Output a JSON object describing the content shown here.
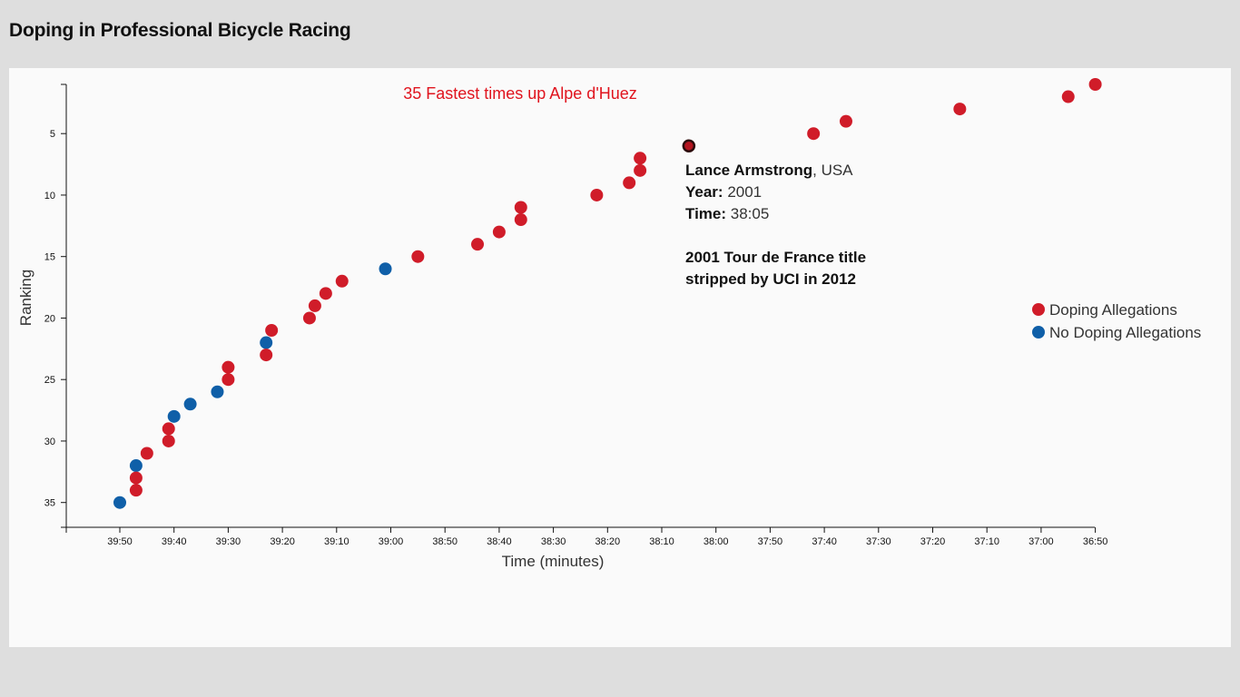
{
  "page": {
    "title": "Doping in Professional Bicycle Racing"
  },
  "colors": {
    "doping": "#d01c29",
    "clean": "#0f5fa8",
    "title": "#e0141e"
  },
  "chart_data": {
    "type": "scatter",
    "title": "35 Fastest times up Alpe d'Huez",
    "xlabel": "Time (minutes)",
    "ylabel": "Ranking",
    "x_unit": "seconds",
    "xlim": [
      2395,
      2215
    ],
    "ylim": [
      1,
      36
    ],
    "x_ticks": [
      "39:50",
      "39:40",
      "39:30",
      "39:20",
      "39:10",
      "39:00",
      "38:50",
      "38:40",
      "38:30",
      "38:20",
      "38:10",
      "38:00",
      "37:50",
      "37:40",
      "37:30",
      "37:20",
      "37:10",
      "37:00",
      "36:50"
    ],
    "y_ticks": [
      "5",
      "10",
      "15",
      "20",
      "25",
      "30",
      "35"
    ],
    "legend": {
      "position": "right",
      "items": [
        {
          "label": "Doping Allegations",
          "color": "#d01c29"
        },
        {
          "label": "No Doping Allegations",
          "color": "#0f5fa8"
        }
      ]
    },
    "points": [
      {
        "rank": 1,
        "time": "36:50",
        "seconds": 2210,
        "doping": true
      },
      {
        "rank": 2,
        "time": "36:55",
        "seconds": 2215,
        "doping": true
      },
      {
        "rank": 3,
        "time": "37:15",
        "seconds": 2235,
        "doping": true
      },
      {
        "rank": 4,
        "time": "37:36",
        "seconds": 2256,
        "doping": true
      },
      {
        "rank": 5,
        "time": "37:42",
        "seconds": 2262,
        "doping": true
      },
      {
        "rank": 6,
        "time": "38:05",
        "seconds": 2285,
        "doping": true,
        "highlighted": true
      },
      {
        "rank": 7,
        "time": "38:14",
        "seconds": 2294,
        "doping": true
      },
      {
        "rank": 8,
        "time": "38:14",
        "seconds": 2294,
        "doping": true
      },
      {
        "rank": 9,
        "time": "38:16",
        "seconds": 2296,
        "doping": true
      },
      {
        "rank": 10,
        "time": "38:22",
        "seconds": 2302,
        "doping": true
      },
      {
        "rank": 11,
        "time": "38:36",
        "seconds": 2316,
        "doping": true
      },
      {
        "rank": 12,
        "time": "38:36",
        "seconds": 2316,
        "doping": true
      },
      {
        "rank": 13,
        "time": "38:40",
        "seconds": 2320,
        "doping": true
      },
      {
        "rank": 14,
        "time": "38:44",
        "seconds": 2324,
        "doping": true
      },
      {
        "rank": 15,
        "time": "38:55",
        "seconds": 2335,
        "doping": true
      },
      {
        "rank": 16,
        "time": "39:01",
        "seconds": 2341,
        "doping": false
      },
      {
        "rank": 17,
        "time": "39:09",
        "seconds": 2349,
        "doping": true
      },
      {
        "rank": 18,
        "time": "39:12",
        "seconds": 2352,
        "doping": true
      },
      {
        "rank": 19,
        "time": "39:14",
        "seconds": 2354,
        "doping": true
      },
      {
        "rank": 20,
        "time": "39:15",
        "seconds": 2355,
        "doping": true
      },
      {
        "rank": 21,
        "time": "39:22",
        "seconds": 2362,
        "doping": true
      },
      {
        "rank": 22,
        "time": "39:23",
        "seconds": 2363,
        "doping": false
      },
      {
        "rank": 23,
        "time": "39:23",
        "seconds": 2363,
        "doping": true
      },
      {
        "rank": 24,
        "time": "39:30",
        "seconds": 2370,
        "doping": true
      },
      {
        "rank": 25,
        "time": "39:30",
        "seconds": 2370,
        "doping": true
      },
      {
        "rank": 26,
        "time": "39:32",
        "seconds": 2372,
        "doping": false
      },
      {
        "rank": 27,
        "time": "39:37",
        "seconds": 2377,
        "doping": false
      },
      {
        "rank": 28,
        "time": "39:40",
        "seconds": 2380,
        "doping": false
      },
      {
        "rank": 29,
        "time": "39:41",
        "seconds": 2381,
        "doping": true
      },
      {
        "rank": 30,
        "time": "39:41",
        "seconds": 2381,
        "doping": true
      },
      {
        "rank": 31,
        "time": "39:45",
        "seconds": 2385,
        "doping": true
      },
      {
        "rank": 32,
        "time": "39:47",
        "seconds": 2387,
        "doping": false
      },
      {
        "rank": 33,
        "time": "39:47",
        "seconds": 2387,
        "doping": true
      },
      {
        "rank": 34,
        "time": "39:47",
        "seconds": 2387,
        "doping": true
      },
      {
        "rank": 35,
        "time": "39:50",
        "seconds": 2390,
        "doping": false
      }
    ],
    "tooltip": {
      "rank": 6,
      "name": "Lance Armstrong",
      "nationality": ", USA",
      "year_label": "Year:",
      "year": " 2001",
      "time_label": "Time:",
      "time": " 38:05",
      "note_line1": "2001 Tour de France title",
      "note_line2": "stripped by UCI in 2012"
    }
  }
}
